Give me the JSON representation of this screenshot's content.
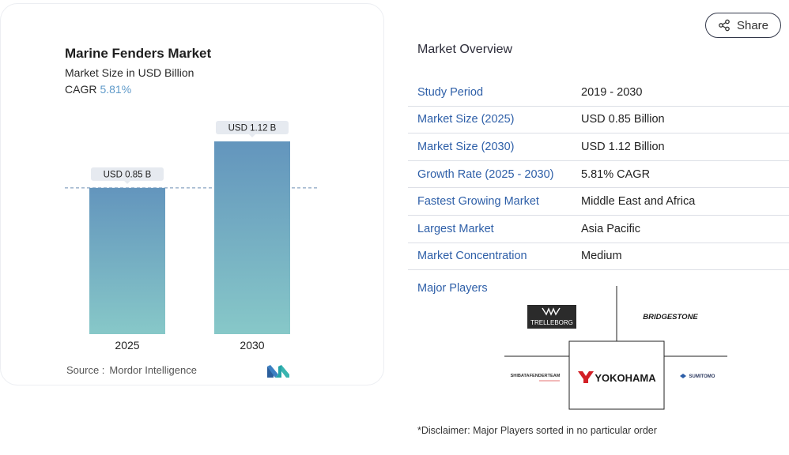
{
  "chart": {
    "title": "Marine Fenders Market",
    "subtitle": "Market Size in USD Billion",
    "cagr_label": "CAGR",
    "cagr_value": "5.81%",
    "source_label": "Source :",
    "source_name": "Mordor Intelligence",
    "colors": {
      "bar_top": "#6395bd",
      "bar_bottom": "#87c8c8",
      "ref_line": "#6c8fb5",
      "label_bg": "#e6eaf0"
    }
  },
  "chart_data": {
    "type": "bar",
    "categories": [
      "2025",
      "2030"
    ],
    "values": [
      0.85,
      1.12
    ],
    "data_labels": [
      "USD 0.85 B",
      "USD 1.12 B"
    ],
    "title": "Marine Fenders Market",
    "ylabel": "",
    "ylim": [
      0,
      1.12
    ],
    "reference_line": 0.85,
    "grid": false,
    "legend": "none"
  },
  "share": {
    "label": "Share",
    "icon": "share-icon"
  },
  "overview": {
    "title": "Market Overview",
    "rows": [
      {
        "label": "Study Period",
        "value": "2019 - 2030"
      },
      {
        "label": "Market Size (2025)",
        "value": "USD 0.85 Billion"
      },
      {
        "label": "Market Size (2030)",
        "value": "USD 1.12 Billion"
      },
      {
        "label": "Growth Rate (2025 - 2030)",
        "value": "5.81% CAGR"
      },
      {
        "label": "Fastest Growing Market",
        "value": "Middle East and Africa"
      },
      {
        "label": "Largest Market",
        "value": "Asia Pacific"
      },
      {
        "label": "Market Concentration",
        "value": "Medium"
      }
    ],
    "players_label": "Major Players",
    "players": [
      "TRELLEBORG",
      "BRIDGESTONE",
      "SHIBATAFENDERTEAM",
      "YOKOHAMA",
      "SUMITOMO"
    ],
    "disclaimer": "*Disclaimer: Major Players sorted in no particular order"
  }
}
